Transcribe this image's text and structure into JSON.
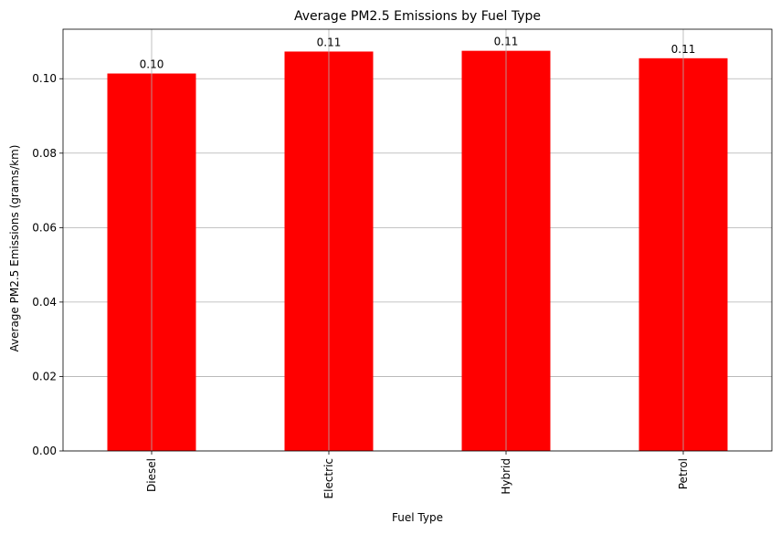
{
  "chart_data": {
    "type": "bar",
    "title": "Average PM2.5 Emissions by Fuel Type",
    "xlabel": "Fuel Type",
    "ylabel": "Average PM2.5 Emissions (grams/km)",
    "categories": [
      "Diesel",
      "Electric",
      "Hybrid",
      "Petrol"
    ],
    "values": [
      0.1014,
      0.1073,
      0.1075,
      0.1055
    ],
    "data_labels": [
      "0.10",
      "0.11",
      "0.11",
      "0.11"
    ],
    "ylim": [
      0,
      0.1133
    ],
    "yticks": [
      0.0,
      0.02,
      0.04,
      0.06,
      0.08,
      0.1
    ],
    "ytick_labels": [
      "0.00",
      "0.02",
      "0.04",
      "0.06",
      "0.08",
      "0.10"
    ],
    "bar_color": "#ff0000",
    "grid": true
  }
}
